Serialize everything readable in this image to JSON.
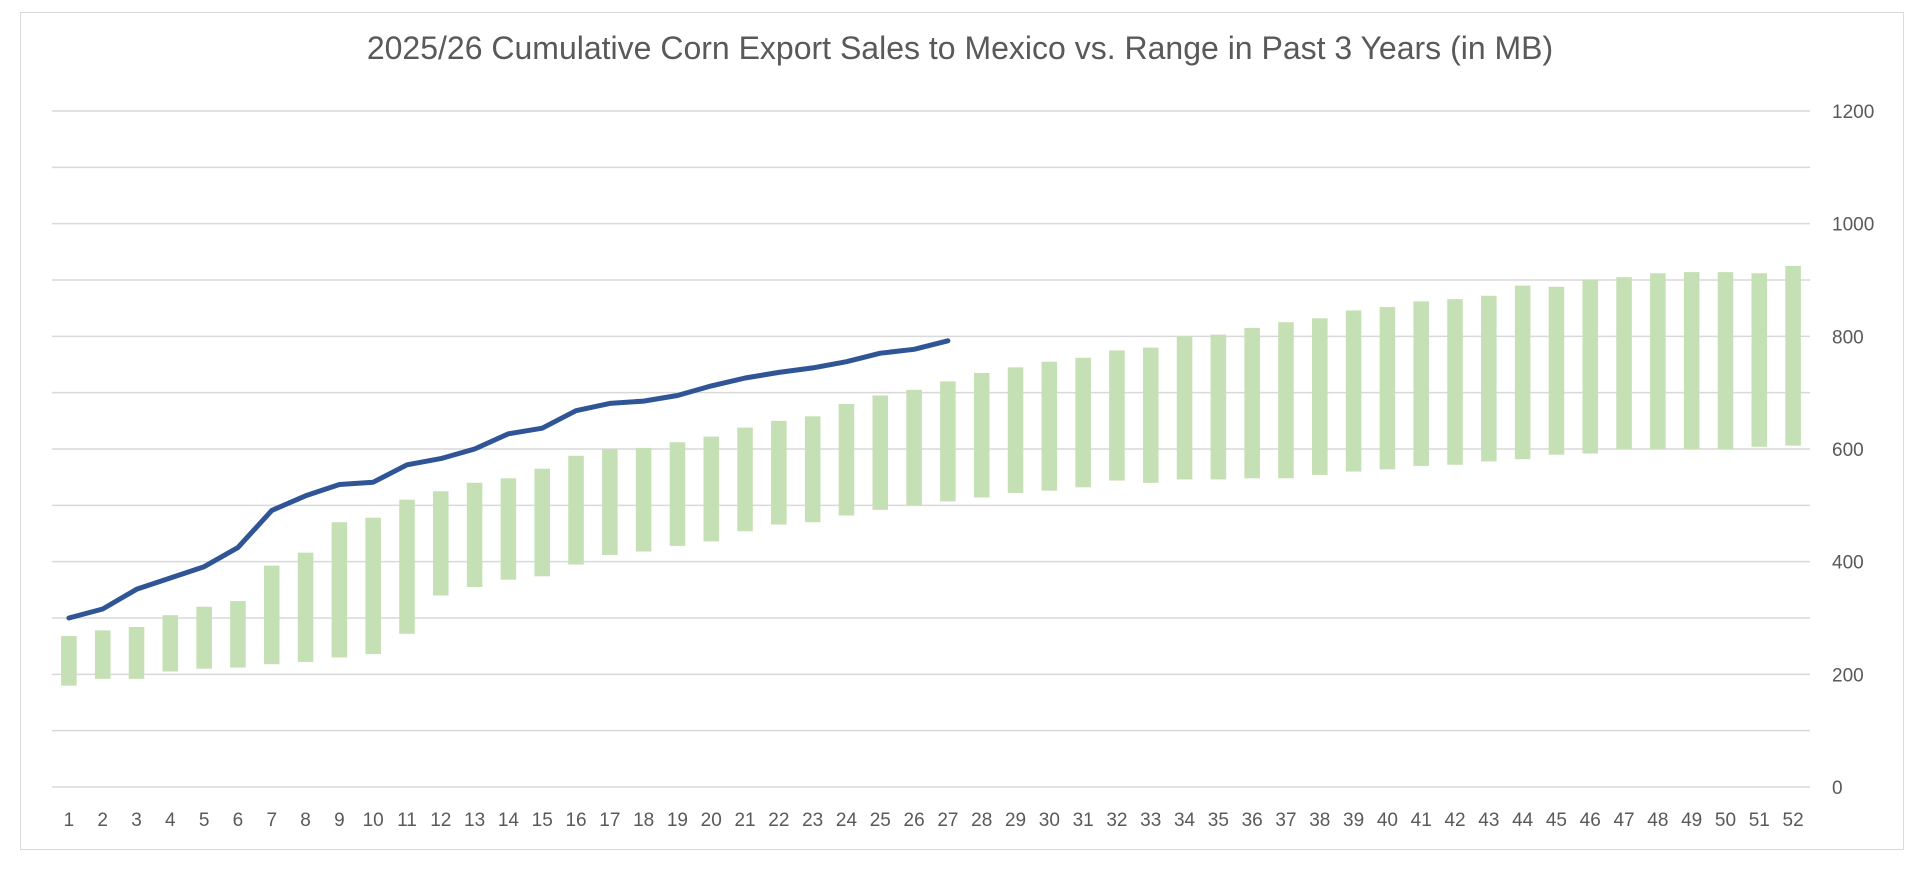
{
  "chart_data": {
    "type": "bar",
    "title": "2025/26 Cumulative Corn Export Sales to Mexico vs. Range in Past 3 Years (in MB)",
    "xlabel": "",
    "ylabel": "",
    "ylim": [
      0,
      1200
    ],
    "yticks": [
      0,
      200,
      400,
      600,
      800,
      1000,
      1200
    ],
    "grid": true,
    "y_axis_side": "right",
    "categories": [
      "1",
      "2",
      "3",
      "4",
      "5",
      "6",
      "7",
      "8",
      "9",
      "10",
      "11",
      "12",
      "13",
      "14",
      "15",
      "16",
      "17",
      "18",
      "19",
      "20",
      "21",
      "22",
      "23",
      "24",
      "25",
      "26",
      "27",
      "28",
      "29",
      "30",
      "31",
      "32",
      "33",
      "34",
      "35",
      "36",
      "37",
      "38",
      "39",
      "40",
      "41",
      "42",
      "43",
      "44",
      "45",
      "46",
      "47",
      "48",
      "49",
      "50",
      "51",
      "52"
    ],
    "range_bars": {
      "low": [
        180,
        192,
        192,
        205,
        210,
        212,
        218,
        222,
        230,
        236,
        272,
        340,
        355,
        368,
        374,
        395,
        412,
        418,
        428,
        436,
        454,
        466,
        470,
        482,
        492,
        500,
        507,
        514,
        522,
        526,
        532,
        544,
        540,
        546,
        546,
        548,
        548,
        554,
        560,
        564,
        570,
        572,
        578,
        582,
        590,
        592,
        600,
        600,
        600,
        600,
        604,
        606
      ],
      "high": [
        268,
        278,
        284,
        305,
        320,
        330,
        393,
        416,
        470,
        478,
        510,
        525,
        540,
        548,
        565,
        588,
        600,
        602,
        612,
        622,
        638,
        650,
        658,
        680,
        695,
        705,
        720,
        735,
        745,
        755,
        762,
        775,
        780,
        800,
        803,
        815,
        825,
        832,
        846,
        852,
        862,
        866,
        872,
        890,
        888,
        900,
        905,
        912,
        914,
        914,
        912,
        925
      ],
      "color": "#c5e0b4"
    },
    "line_series": {
      "values": [
        300,
        316,
        351,
        371,
        391,
        425,
        491,
        517,
        537,
        541,
        572,
        583,
        600,
        627,
        637,
        668,
        681,
        685,
        695,
        712,
        726,
        736,
        744,
        755,
        770,
        777,
        792
      ],
      "color": "#2f5597"
    }
  }
}
